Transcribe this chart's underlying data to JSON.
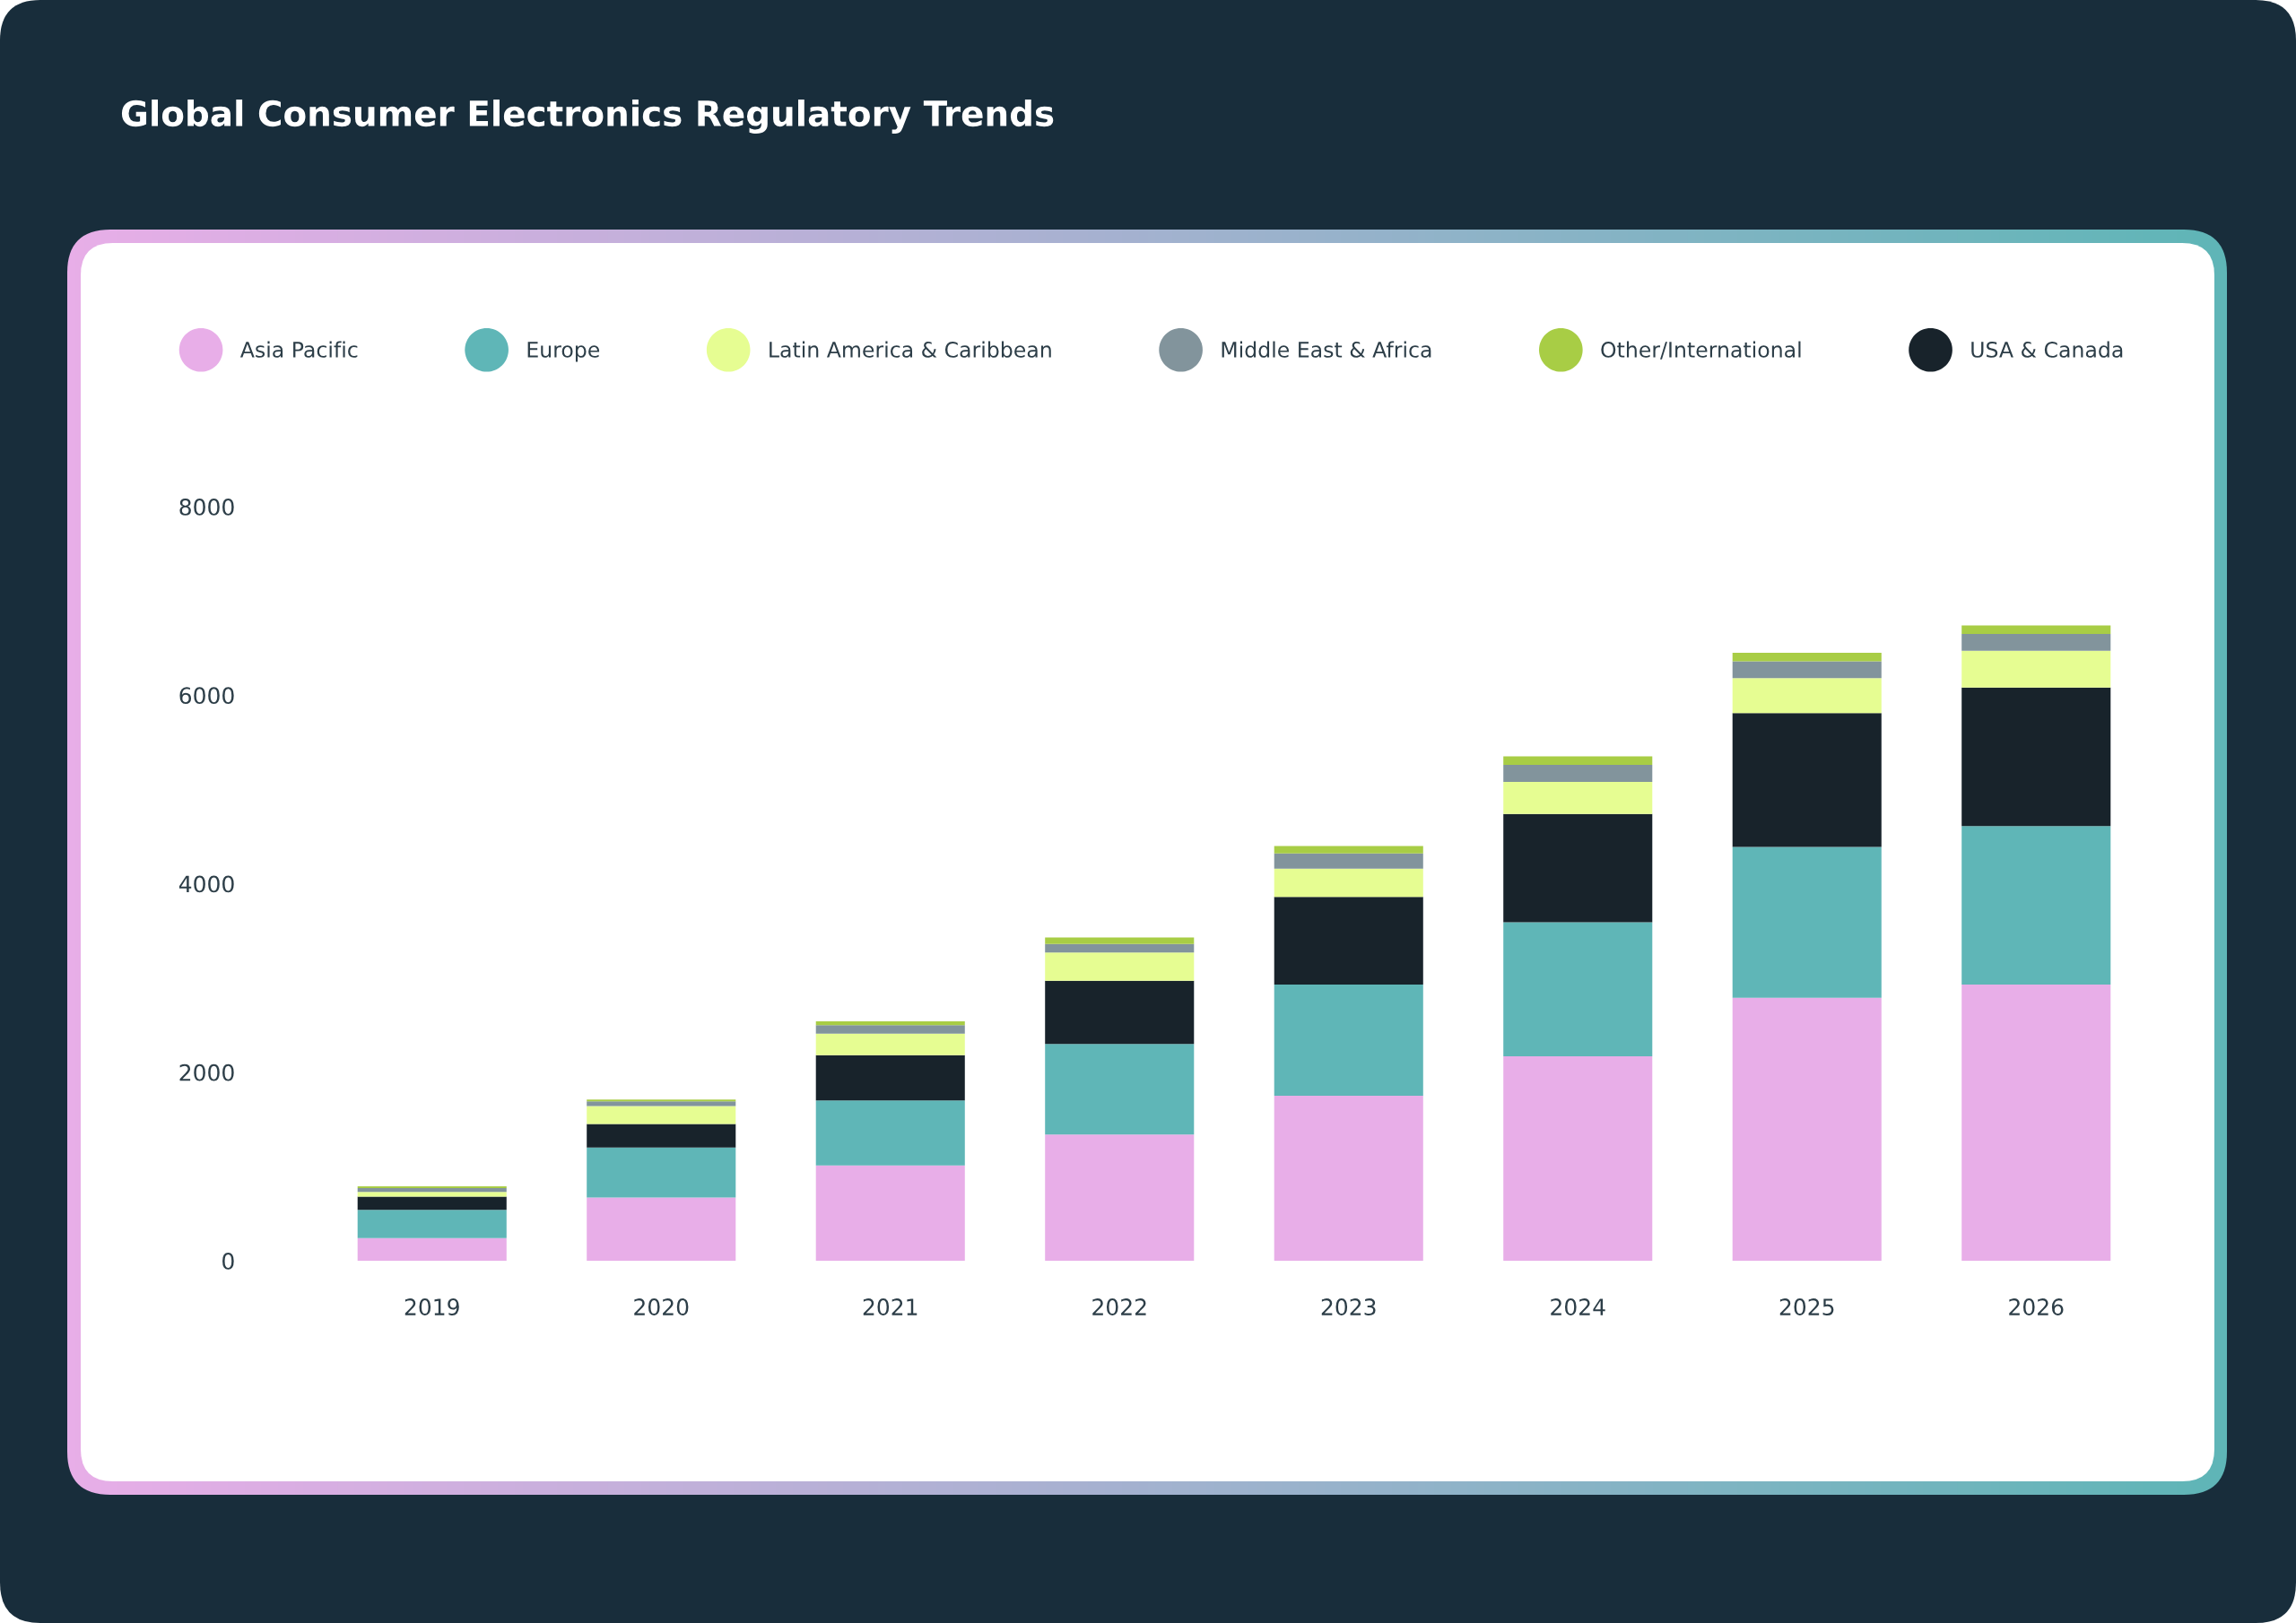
{
  "chart_data": {
    "type": "bar",
    "title": "Global Consumer Electronics Regulatory Trends",
    "categories": [
      "2019",
      "2020",
      "2021",
      "2022",
      "2023",
      "2024",
      "2025",
      "2026"
    ],
    "stacked": true,
    "series": [
      {
        "name": "Asia Pacific",
        "color": "#e8aee8",
        "values": [
          240,
          670,
          1010,
          1340,
          1750,
          2170,
          2790,
          2930
        ]
      },
      {
        "name": "Europe",
        "color": "#5fb6b7",
        "values": [
          300,
          530,
          690,
          960,
          1180,
          1420,
          1600,
          1680
        ]
      },
      {
        "name": "USA & Canada",
        "color": "#18232b",
        "values": [
          140,
          250,
          480,
          670,
          930,
          1150,
          1420,
          1470
        ]
      },
      {
        "name": "Latin America & Caribbean",
        "color": "#e6fd92",
        "values": [
          50,
          190,
          230,
          300,
          300,
          340,
          370,
          390
        ]
      },
      {
        "name": "Middle East & Africa",
        "color": "#82949c",
        "values": [
          40,
          50,
          90,
          90,
          160,
          180,
          180,
          180
        ]
      },
      {
        "name": "Other/International",
        "color": "#a8cd45",
        "values": [
          20,
          20,
          40,
          70,
          80,
          90,
          90,
          90
        ]
      }
    ],
    "ylim": [
      0,
      8000
    ],
    "yticks": [
      0,
      2000,
      4000,
      6000,
      8000
    ],
    "legend": "top"
  }
}
